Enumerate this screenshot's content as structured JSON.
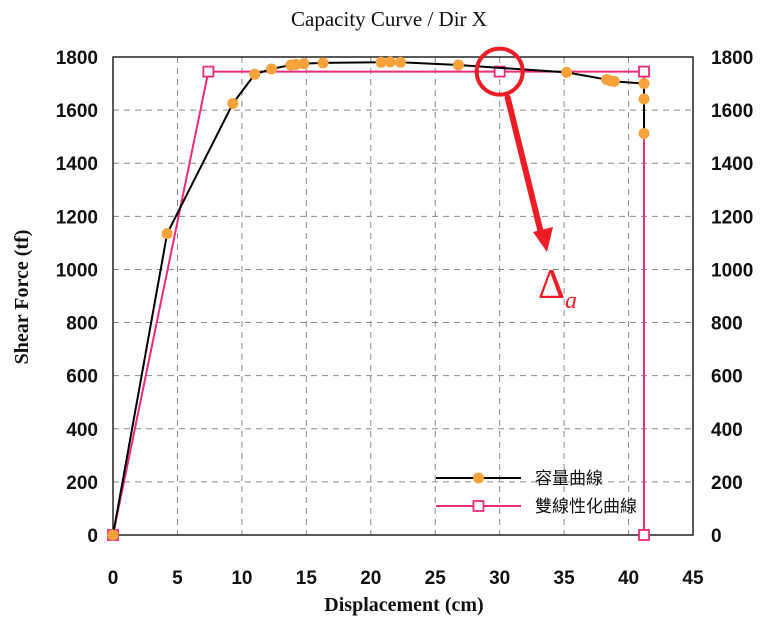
{
  "chart_data": {
    "type": "line",
    "title": "Capacity Curve / Dir X",
    "xlabel": "Displacement (cm)",
    "ylabel": "Shear Force (tf)",
    "xlim": [
      0,
      45
    ],
    "ylim": [
      0,
      1800
    ],
    "x_ticks": [
      "0",
      "5",
      "10",
      "15",
      "20",
      "25",
      "30",
      "35",
      "40",
      "45"
    ],
    "y_ticks": [
      "0",
      "200",
      "400",
      "600",
      "800",
      "1000",
      "1200",
      "1400",
      "1600",
      "1800"
    ],
    "y2_ticks": [
      "0",
      "200",
      "400",
      "600",
      "800",
      "1000",
      "1200",
      "1400",
      "1600",
      "1800"
    ],
    "grid": true,
    "legend_position": "bottom-right",
    "series": [
      {
        "name": "容量曲線",
        "line_color": "#000000",
        "marker_color": "#f7a23b",
        "marker": "circle",
        "points": [
          [
            0,
            0
          ],
          [
            4.2,
            1135
          ],
          [
            9.3,
            1625
          ],
          [
            11.0,
            1735
          ],
          [
            12.3,
            1755
          ],
          [
            13.8,
            1770
          ],
          [
            14.2,
            1772
          ],
          [
            14.8,
            1775
          ],
          [
            16.3,
            1778
          ],
          [
            20.8,
            1780
          ],
          [
            21.5,
            1781
          ],
          [
            22.3,
            1780
          ],
          [
            26.8,
            1770
          ],
          [
            35.2,
            1742
          ],
          [
            38.3,
            1715
          ],
          [
            38.6,
            1710
          ],
          [
            38.9,
            1708
          ],
          [
            41.2,
            1700
          ],
          [
            41.2,
            1642
          ],
          [
            41.2,
            1512
          ]
        ]
      },
      {
        "name": "雙線性化曲線",
        "line_color": "#ee2a7b",
        "marker_color": "#ee2a7b",
        "marker": "square-open",
        "points": [
          [
            0,
            0
          ],
          [
            7.4,
            1745
          ],
          [
            30.0,
            1745
          ],
          [
            41.2,
            1745
          ],
          [
            41.2,
            0
          ]
        ]
      }
    ],
    "annotations": {
      "marker_label": "Δa",
      "marker_symbol": "Δ",
      "marker_subscript": "a",
      "highlight_point": [
        30.0,
        1745
      ],
      "color": "#ee1c25"
    }
  }
}
